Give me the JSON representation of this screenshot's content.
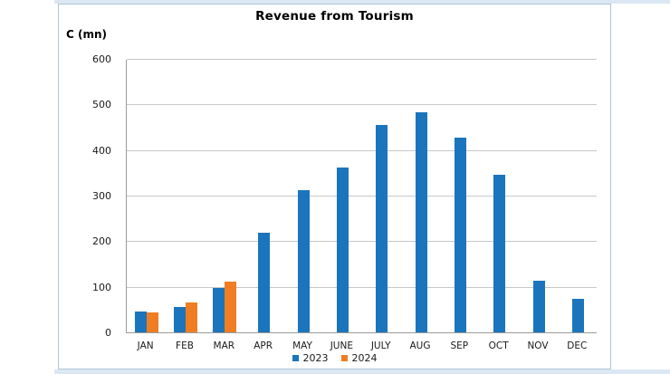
{
  "window": {
    "top_strip_color": "#dbe7f3",
    "bottom_strip_color": "#dbe7f3",
    "box_border_color": "#adc6d4",
    "gridline_color": "#c8c8c8",
    "axis_color": "#9b9b9b"
  },
  "chart_data": {
    "type": "bar",
    "title": "Revenue from Tourism",
    "y_axis_title": "C (mn)",
    "categories": [
      "JAN",
      "FEB",
      "MAR",
      "APR",
      "MAY",
      "JUNE",
      "JULY",
      "AUG",
      "SEP",
      "OCT",
      "NOV",
      "DEC"
    ],
    "series": [
      {
        "name": "2023",
        "color": "#1b75bc",
        "values": [
          45,
          56,
          97,
          218,
          311,
          362,
          455,
          483,
          428,
          346,
          114,
          73
        ]
      },
      {
        "name": "2024",
        "color": "#f07d22",
        "values": [
          43,
          66,
          111,
          null,
          null,
          null,
          null,
          null,
          null,
          null,
          null,
          null
        ]
      }
    ],
    "ylim": [
      0,
      600
    ],
    "yticks": [
      0,
      100,
      200,
      300,
      400,
      500,
      600
    ],
    "grid": true,
    "legend_position": "bottom"
  }
}
